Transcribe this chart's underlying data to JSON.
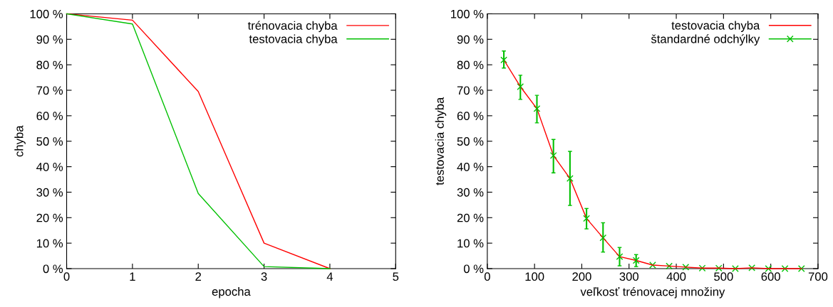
{
  "chart_data": [
    {
      "type": "line",
      "xlabel": "epocha",
      "ylabel": "chyba",
      "x": [
        0,
        1,
        2,
        3,
        4
      ],
      "xlim": [
        0,
        5
      ],
      "xticks": [
        0,
        1,
        2,
        3,
        4,
        5
      ],
      "ylim": [
        0,
        100
      ],
      "yticks": [
        {
          "value": 0,
          "label": "0 %"
        },
        {
          "value": 10,
          "label": "10 %"
        },
        {
          "value": 20,
          "label": "20 %"
        },
        {
          "value": 30,
          "label": "30 %"
        },
        {
          "value": 40,
          "label": "40 %"
        },
        {
          "value": 50,
          "label": "50 %"
        },
        {
          "value": 60,
          "label": "60 %"
        },
        {
          "value": 70,
          "label": "70 %"
        },
        {
          "value": 80,
          "label": "80 %"
        },
        {
          "value": 90,
          "label": "90 %"
        },
        {
          "value": 100,
          "label": "100 %"
        }
      ],
      "legend": "top right",
      "grid": false,
      "series": [
        {
          "name": "trénovacia chyba",
          "color": "#ff0000",
          "values": [
            100,
            97.5,
            69.5,
            10,
            0
          ]
        },
        {
          "name": "testovacia chyba",
          "color": "#00c000",
          "values": [
            100,
            96,
            29.5,
            0.8,
            0
          ]
        }
      ]
    },
    {
      "type": "line",
      "xlabel": "veľkosť trénovacej množiny",
      "ylabel": "testovacia chyba",
      "x": [
        35,
        70,
        105,
        140,
        175,
        210,
        245,
        280,
        315,
        350,
        385,
        420,
        455,
        490,
        525,
        560,
        595,
        630,
        665
      ],
      "xlim": [
        0,
        700
      ],
      "xticks": [
        0,
        100,
        200,
        300,
        400,
        500,
        600,
        700
      ],
      "ylim": [
        0,
        100
      ],
      "yticks": [
        {
          "value": 0,
          "label": "0 %"
        },
        {
          "value": 10,
          "label": "10 %"
        },
        {
          "value": 20,
          "label": "20 %"
        },
        {
          "value": 30,
          "label": "30 %"
        },
        {
          "value": 40,
          "label": "40 %"
        },
        {
          "value": 50,
          "label": "50 %"
        },
        {
          "value": 60,
          "label": "60 %"
        },
        {
          "value": 70,
          "label": "70 %"
        },
        {
          "value": 80,
          "label": "80 %"
        },
        {
          "value": 90,
          "label": "90 %"
        },
        {
          "value": 100,
          "label": "100 %"
        }
      ],
      "legend": "top right",
      "grid": false,
      "series": [
        {
          "name": "testovacia chyba",
          "color": "#ff0000",
          "values": [
            81.9,
            71.4,
            62.8,
            44.4,
            35.4,
            19.7,
            12.1,
            4.7,
            3.2,
            1.4,
            1.0,
            0.6,
            0.2,
            0.2,
            0,
            0.3,
            0,
            0,
            0
          ]
        },
        {
          "name": "štandardné odchýlky",
          "type": "scatter",
          "marker": "cross",
          "color": "#00c000",
          "values": [
            81.9,
            71.4,
            62.8,
            44.4,
            35.4,
            19.7,
            12.1,
            4.7,
            3.2,
            1.4,
            1.0,
            0.6,
            0.2,
            0.2,
            0,
            0.3,
            0,
            0,
            0
          ],
          "errors": [
            [
              78.7,
              85.4
            ],
            [
              66.4,
              75.9
            ],
            [
              57.2,
              68.0
            ],
            [
              37.6,
              50.7
            ],
            [
              24.8,
              46.0
            ],
            [
              15.6,
              23.6
            ],
            [
              6.5,
              18.0
            ],
            [
              1.1,
              8.3
            ],
            [
              0.8,
              5.5
            ],
            null,
            null,
            null,
            null,
            null,
            null,
            null,
            null,
            null,
            null
          ]
        }
      ]
    }
  ]
}
